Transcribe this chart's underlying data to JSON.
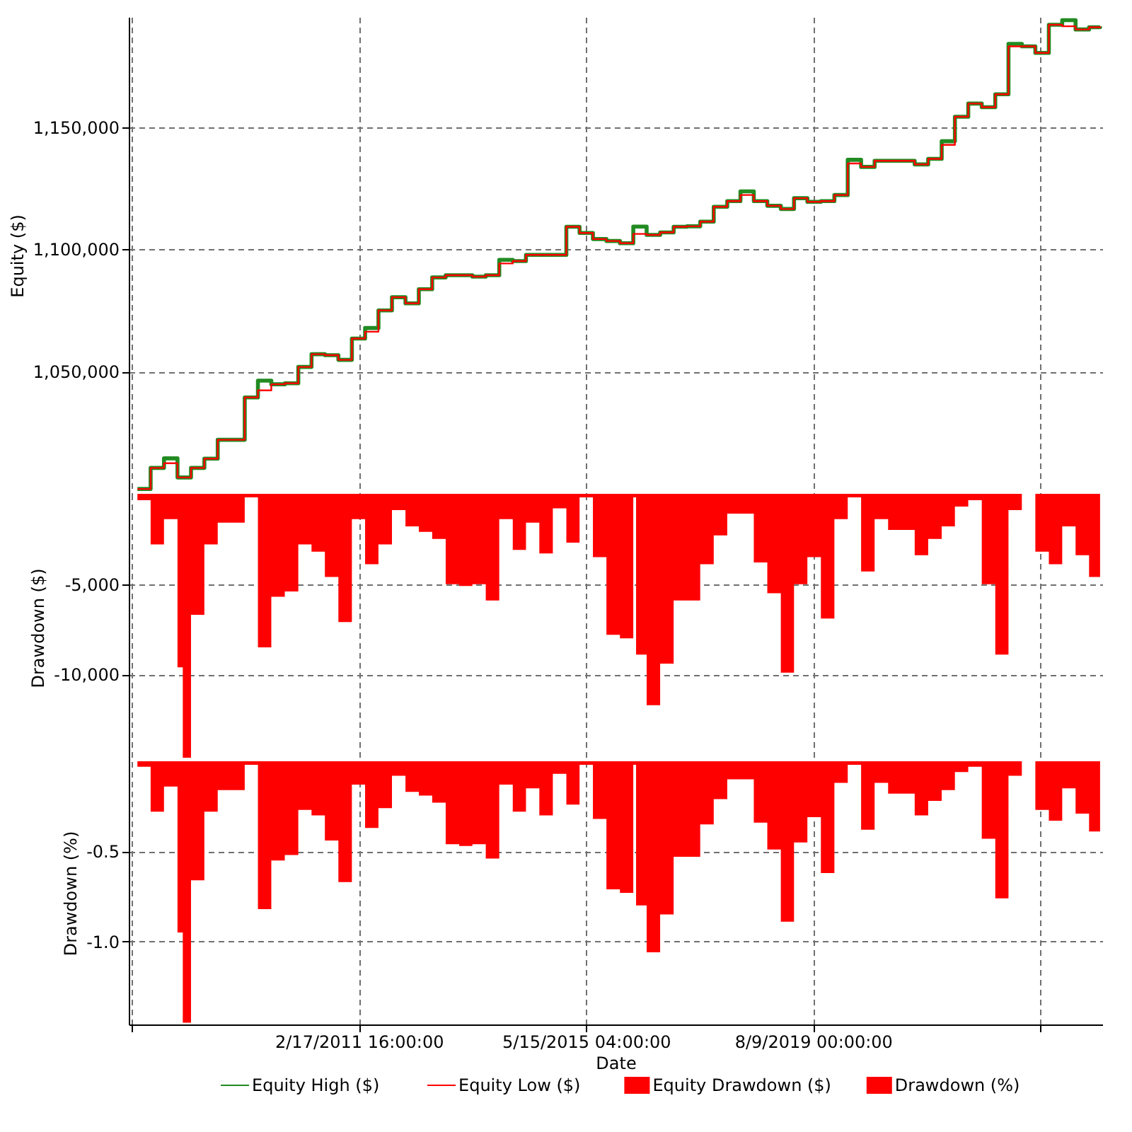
{
  "chart_data": [
    {
      "type": "step",
      "ylabel": "Equity ($)",
      "xlim": [
        "2006-11-03",
        "2024-12-30"
      ],
      "xticks": [
        {
          "value": "2006-11-22T12:00",
          "label": null
        },
        {
          "value": "2011-02-17T16:00",
          "label": null
        },
        {
          "value": "2015-05-15T04:00",
          "label": null
        },
        {
          "value": "2019-08-09T00:00",
          "label": null
        },
        {
          "value": "2023-11-03T20:00",
          "label": null
        }
      ],
      "ylim": [
        1000000,
        1195000
      ],
      "yticks": [
        {
          "value": 1050000,
          "label": "1,050,000"
        },
        {
          "value": 1100000,
          "label": "1,100,000"
        },
        {
          "value": 1150000,
          "label": "1,150,000"
        }
      ],
      "grid": true,
      "tick_labels": "y",
      "legend": "bottom",
      "x": [
        "2007-01-01",
        "2007-04-01",
        "2007-07-01",
        "2007-10-01",
        "2008-01-01",
        "2008-04-01",
        "2008-07-01",
        "2008-10-01",
        "2009-01-01",
        "2009-04-01",
        "2009-07-01",
        "2009-10-01",
        "2010-01-01",
        "2010-04-01",
        "2010-07-01",
        "2010-10-01",
        "2011-01-01",
        "2011-04-01",
        "2011-07-01",
        "2011-10-01",
        "2012-01-01",
        "2012-04-01",
        "2012-07-01",
        "2012-10-01",
        "2013-01-01",
        "2013-04-01",
        "2013-07-01",
        "2013-10-01",
        "2014-01-01",
        "2014-04-01",
        "2014-07-01",
        "2014-10-01",
        "2015-01-01",
        "2015-04-01",
        "2015-07-01",
        "2015-10-01",
        "2016-01-01",
        "2016-04-01",
        "2016-07-01",
        "2016-10-01",
        "2017-01-01",
        "2017-04-01",
        "2017-07-01",
        "2017-10-01",
        "2018-01-01",
        "2018-04-01",
        "2018-07-01",
        "2018-10-01",
        "2019-01-01",
        "2019-04-01",
        "2019-07-01",
        "2019-10-01",
        "2020-01-01",
        "2020-04-01",
        "2020-07-01",
        "2020-10-01",
        "2021-01-01",
        "2021-04-01",
        "2021-07-01",
        "2021-10-01",
        "2022-01-01",
        "2022-04-01",
        "2022-07-01",
        "2022-10-01",
        "2023-01-01",
        "2023-04-01",
        "2023-07-01",
        "2023-10-01",
        "2024-01-01",
        "2024-04-01",
        "2024-07-01",
        "2024-10-01",
        "2024-12-15"
      ],
      "series": [
        {
          "name": "Equity High ($)",
          "color": "#228b22",
          "values": [
            1002000,
            1010600,
            1014500,
            1006700,
            1010600,
            1014400,
            1022100,
            1022100,
            1039400,
            1046300,
            1044800,
            1045200,
            1051900,
            1057100,
            1056700,
            1054800,
            1063500,
            1067800,
            1075000,
            1080400,
            1077900,
            1083700,
            1088500,
            1089400,
            1089400,
            1088800,
            1089400,
            1095700,
            1095200,
            1097700,
            1097700,
            1097700,
            1109200,
            1106700,
            1104200,
            1103400,
            1102500,
            1109300,
            1105900,
            1106900,
            1109200,
            1109400,
            1111300,
            1117400,
            1119700,
            1123700,
            1119700,
            1117800,
            1116500,
            1120900,
            1119400,
            1119700,
            1122200,
            1136600,
            1133700,
            1136200,
            1136200,
            1136200,
            1134700,
            1137000,
            1144200,
            1154200,
            1159600,
            1158100,
            1163400,
            1184000,
            1183000,
            1180300,
            1191800,
            1193700,
            1189900,
            1190800,
            1191200
          ]
        },
        {
          "name": "Equity Low ($)",
          "color": "#ff0000",
          "values": [
            1002000,
            1010600,
            1012500,
            1006700,
            1010600,
            1014400,
            1022100,
            1022100,
            1039400,
            1042300,
            1044800,
            1045200,
            1051900,
            1057100,
            1056700,
            1054800,
            1063500,
            1066300,
            1075000,
            1080400,
            1077900,
            1083700,
            1088500,
            1089400,
            1089400,
            1088800,
            1089400,
            1094200,
            1095200,
            1097700,
            1097700,
            1097700,
            1109200,
            1106700,
            1104200,
            1103400,
            1102500,
            1106300,
            1105900,
            1106900,
            1109200,
            1109400,
            1111300,
            1117400,
            1119700,
            1122200,
            1119700,
            1117800,
            1116500,
            1120900,
            1119400,
            1119700,
            1122200,
            1135100,
            1133700,
            1136200,
            1136200,
            1136200,
            1134700,
            1137000,
            1142700,
            1154200,
            1159600,
            1158100,
            1163400,
            1183000,
            1183000,
            1180300,
            1191800,
            1191200,
            1189900,
            1190800,
            1191200
          ]
        }
      ]
    },
    {
      "type": "area",
      "ylabel": "Drawdown ($)",
      "xlim": [
        "2006-11-03",
        "2024-12-30"
      ],
      "xticks": [
        {
          "value": "2006-11-22T12:00",
          "label": null
        },
        {
          "value": "2011-02-17T16:00",
          "label": null
        },
        {
          "value": "2015-05-15T04:00",
          "label": null
        },
        {
          "value": "2019-08-09T00:00",
          "label": null
        },
        {
          "value": "2023-11-03T20:00",
          "label": null
        }
      ],
      "ylim": [
        -14800,
        0
      ],
      "yticks": [
        {
          "value": -10000,
          "label": "-10,000"
        },
        {
          "value": -5000,
          "label": "-5,000"
        }
      ],
      "grid": true,
      "tick_labels": "y",
      "legend": "bottom",
      "x": [
        "2007-01-01",
        "2007-04-01",
        "2007-07-01",
        "2007-10-01",
        "2007-11-06",
        "2008-01-01",
        "2008-04-01",
        "2008-07-01",
        "2008-10-01",
        "2009-01-01",
        "2009-04-01",
        "2009-07-01",
        "2009-10-01",
        "2010-01-01",
        "2010-04-01",
        "2010-07-01",
        "2010-10-01",
        "2011-01-01",
        "2011-04-01",
        "2011-07-01",
        "2011-10-01",
        "2012-01-01",
        "2012-04-01",
        "2012-07-01",
        "2012-10-01",
        "2013-01-01",
        "2013-04-01",
        "2013-07-01",
        "2013-10-01",
        "2014-01-01",
        "2014-04-01",
        "2014-07-01",
        "2014-10-01",
        "2015-01-01",
        "2015-04-01",
        "2015-07-01",
        "2015-10-01",
        "2016-01-01",
        "2016-04-01",
        "2016-04-20",
        "2016-07-01",
        "2016-10-01",
        "2017-01-01",
        "2017-04-01",
        "2017-07-01",
        "2017-10-01",
        "2018-01-01",
        "2018-04-01",
        "2018-07-01",
        "2018-10-01",
        "2019-01-01",
        "2019-04-01",
        "2019-07-01",
        "2019-10-01",
        "2020-01-01",
        "2020-04-01",
        "2020-07-01",
        "2020-10-01",
        "2021-01-01",
        "2021-04-01",
        "2021-07-01",
        "2021-10-01",
        "2022-01-01",
        "2022-04-01",
        "2022-07-01",
        "2022-10-01",
        "2023-01-01",
        "2023-04-01",
        "2023-07-01",
        "2023-10-01",
        "2024-01-01",
        "2024-04-01",
        "2024-07-01",
        "2024-10-01",
        "2024-12-15"
      ],
      "series": [
        {
          "name": "Equity Drawdown ($)",
          "color": "#ff0000",
          "values": [
            -350,
            -2800,
            -1400,
            -9600,
            -14600,
            -6700,
            -2800,
            -1600,
            -1600,
            -200,
            -8500,
            -5700,
            -5400,
            -2800,
            -3200,
            -4600,
            -7100,
            -1400,
            -3900,
            -2800,
            -900,
            -1800,
            -2100,
            -2500,
            -5000,
            -5100,
            -5000,
            -5900,
            -1400,
            -3100,
            -1600,
            -3300,
            -800,
            -2700,
            -200,
            -3500,
            -7800,
            -8000,
            -200,
            -8900,
            -11700,
            -9400,
            -5900,
            -5900,
            -3900,
            -2300,
            -1100,
            -1100,
            -3800,
            -5500,
            -9900,
            -5000,
            -3500,
            -6900,
            -1400,
            -200,
            -4300,
            -1400,
            -2000,
            -2000,
            -3400,
            -2500,
            -1800,
            -700,
            -350,
            -5000,
            -8900,
            -900,
            0,
            -3200,
            -3900,
            -1800,
            -3400,
            -4600,
            -2800
          ]
        }
      ]
    },
    {
      "type": "area",
      "ylabel": "Drawdown (%)",
      "xlabel": "Date",
      "xlim": [
        "2006-11-03",
        "2024-12-30"
      ],
      "xticks": [
        {
          "value": "2006-11-22T12:00",
          "label": null
        },
        {
          "value": "2011-02-17T16:00",
          "label": "2/17/2011 16:00:00"
        },
        {
          "value": "2015-05-15T04:00",
          "label": "5/15/2015 04:00:00"
        },
        {
          "value": "2019-08-09T00:00",
          "label": "8/9/2019 00:00:00"
        },
        {
          "value": "2023-11-03T20:00",
          "label": null
        }
      ],
      "ylim": [
        -1.46,
        0
      ],
      "yticks": [
        {
          "value": -1.0,
          "label": "-1.0"
        },
        {
          "value": -0.5,
          "label": "-0.5"
        }
      ],
      "grid": true,
      "legend": "bottom",
      "x": [
        "2007-01-01",
        "2007-04-01",
        "2007-07-01",
        "2007-10-01",
        "2007-11-06",
        "2008-01-01",
        "2008-04-01",
        "2008-07-01",
        "2008-10-01",
        "2009-01-01",
        "2009-04-01",
        "2009-07-01",
        "2009-10-01",
        "2010-01-01",
        "2010-04-01",
        "2010-07-01",
        "2010-10-01",
        "2011-01-01",
        "2011-04-01",
        "2011-07-01",
        "2011-10-01",
        "2012-01-01",
        "2012-04-01",
        "2012-07-01",
        "2012-10-01",
        "2013-01-01",
        "2013-04-01",
        "2013-07-01",
        "2013-10-01",
        "2014-01-01",
        "2014-04-01",
        "2014-07-01",
        "2014-10-01",
        "2015-01-01",
        "2015-04-01",
        "2015-07-01",
        "2015-10-01",
        "2016-01-01",
        "2016-04-01",
        "2016-04-20",
        "2016-07-01",
        "2016-10-01",
        "2017-01-01",
        "2017-04-01",
        "2017-07-01",
        "2017-10-01",
        "2018-01-01",
        "2018-04-01",
        "2018-07-01",
        "2018-10-01",
        "2019-01-01",
        "2019-04-01",
        "2019-07-01",
        "2019-10-01",
        "2020-01-01",
        "2020-04-01",
        "2020-07-01",
        "2020-10-01",
        "2021-01-01",
        "2021-04-01",
        "2021-07-01",
        "2021-10-01",
        "2022-01-01",
        "2022-04-01",
        "2022-07-01",
        "2022-10-01",
        "2023-01-01",
        "2023-04-01",
        "2023-07-01",
        "2023-10-01",
        "2024-01-01",
        "2024-04-01",
        "2024-07-01",
        "2024-10-01",
        "2024-12-15"
      ],
      "series": [
        {
          "name": "Drawdown (%)",
          "color": "#ff0000",
          "values": [
            -0.03,
            -0.28,
            -0.14,
            -0.95,
            -1.45,
            -0.66,
            -0.28,
            -0.16,
            -0.16,
            -0.02,
            -0.82,
            -0.55,
            -0.52,
            -0.27,
            -0.3,
            -0.44,
            -0.67,
            -0.13,
            -0.37,
            -0.26,
            -0.08,
            -0.17,
            -0.19,
            -0.23,
            -0.46,
            -0.47,
            -0.46,
            -0.54,
            -0.13,
            -0.28,
            -0.15,
            -0.3,
            -0.07,
            -0.24,
            -0.02,
            -0.32,
            -0.71,
            -0.73,
            -0.02,
            -0.8,
            -1.06,
            -0.85,
            -0.53,
            -0.53,
            -0.35,
            -0.21,
            -0.1,
            -0.1,
            -0.34,
            -0.49,
            -0.89,
            -0.45,
            -0.31,
            -0.62,
            -0.12,
            -0.02,
            -0.38,
            -0.12,
            -0.18,
            -0.18,
            -0.3,
            -0.22,
            -0.16,
            -0.06,
            -0.03,
            -0.43,
            -0.76,
            -0.08,
            0,
            -0.27,
            -0.33,
            -0.15,
            -0.29,
            -0.39,
            -0.24
          ]
        }
      ]
    }
  ]
}
